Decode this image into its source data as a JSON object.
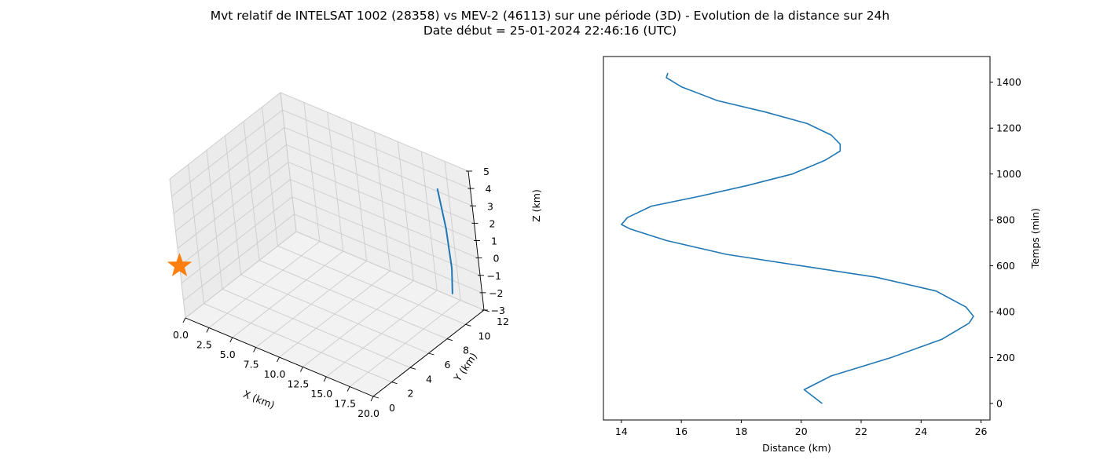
{
  "figure": {
    "title_line1": "Mvt relatif de INTELSAT 1002 (28358) vs MEV-2 (46113) sur une période (3D) - Evolution de la distance sur 24h",
    "title_line2": "Date début = 25-01-2024 22:46:16 (UTC)"
  },
  "chart_data": [
    {
      "type": "scatter",
      "projection": "3d",
      "xlabel": "X (km)",
      "ylabel": "Y (km)",
      "zlabel": "Z (km)",
      "xlim": [
        0,
        20
      ],
      "ylim": [
        0,
        12
      ],
      "zlim": [
        -3,
        5
      ],
      "x_ticks": [
        "0.0",
        "2.5",
        "5.0",
        "7.5",
        "10.0",
        "12.5",
        "15.0",
        "17.5",
        "20.0"
      ],
      "y_ticks": [
        "0",
        "2",
        "4",
        "6",
        "8",
        "10",
        "12"
      ],
      "z_ticks": [
        "−3",
        "−2",
        "−1",
        "0",
        "1",
        "2",
        "3",
        "4",
        "5"
      ],
      "grid": true,
      "series": [
        {
          "marker": "line",
          "color": "#1f77b4",
          "points": [
            [
              15.2,
              13.0,
              2.5
            ],
            [
              16.0,
              12.7,
              0.5
            ],
            [
              16.6,
              12.3,
              -1.5
            ],
            [
              16.9,
              11.8,
              -2.7
            ]
          ]
        },
        {
          "marker": "star",
          "color": "#ff7f0e",
          "points": [
            [
              0.0,
              0.0,
              0.0
            ]
          ]
        }
      ]
    },
    {
      "type": "line",
      "xlabel": "Distance (km)",
      "ylabel": "Temps (min)",
      "xlim": [
        13.4,
        26.3
      ],
      "ylim": [
        -72,
        1512
      ],
      "x_ticks": [
        14,
        16,
        18,
        20,
        22,
        24,
        26
      ],
      "y_ticks": [
        0,
        200,
        400,
        600,
        800,
        1000,
        1200,
        1400
      ],
      "y_axis_side": "right",
      "grid": false,
      "color": "#1f77b4",
      "points": [
        [
          20.7,
          0
        ],
        [
          20.1,
          60
        ],
        [
          21.0,
          120
        ],
        [
          23.0,
          200
        ],
        [
          24.7,
          280
        ],
        [
          25.6,
          350
        ],
        [
          25.75,
          380
        ],
        [
          25.5,
          420
        ],
        [
          24.5,
          490
        ],
        [
          22.5,
          550
        ],
        [
          20.0,
          600
        ],
        [
          17.5,
          650
        ],
        [
          15.5,
          710
        ],
        [
          14.3,
          760
        ],
        [
          14.0,
          780
        ],
        [
          14.2,
          810
        ],
        [
          15.0,
          860
        ],
        [
          16.5,
          900
        ],
        [
          18.2,
          950
        ],
        [
          19.7,
          1000
        ],
        [
          20.8,
          1060
        ],
        [
          21.3,
          1100
        ],
        [
          21.3,
          1130
        ],
        [
          21.0,
          1170
        ],
        [
          20.2,
          1220
        ],
        [
          18.8,
          1270
        ],
        [
          17.2,
          1320
        ],
        [
          16.0,
          1380
        ],
        [
          15.5,
          1420
        ],
        [
          15.55,
          1440
        ]
      ]
    }
  ]
}
